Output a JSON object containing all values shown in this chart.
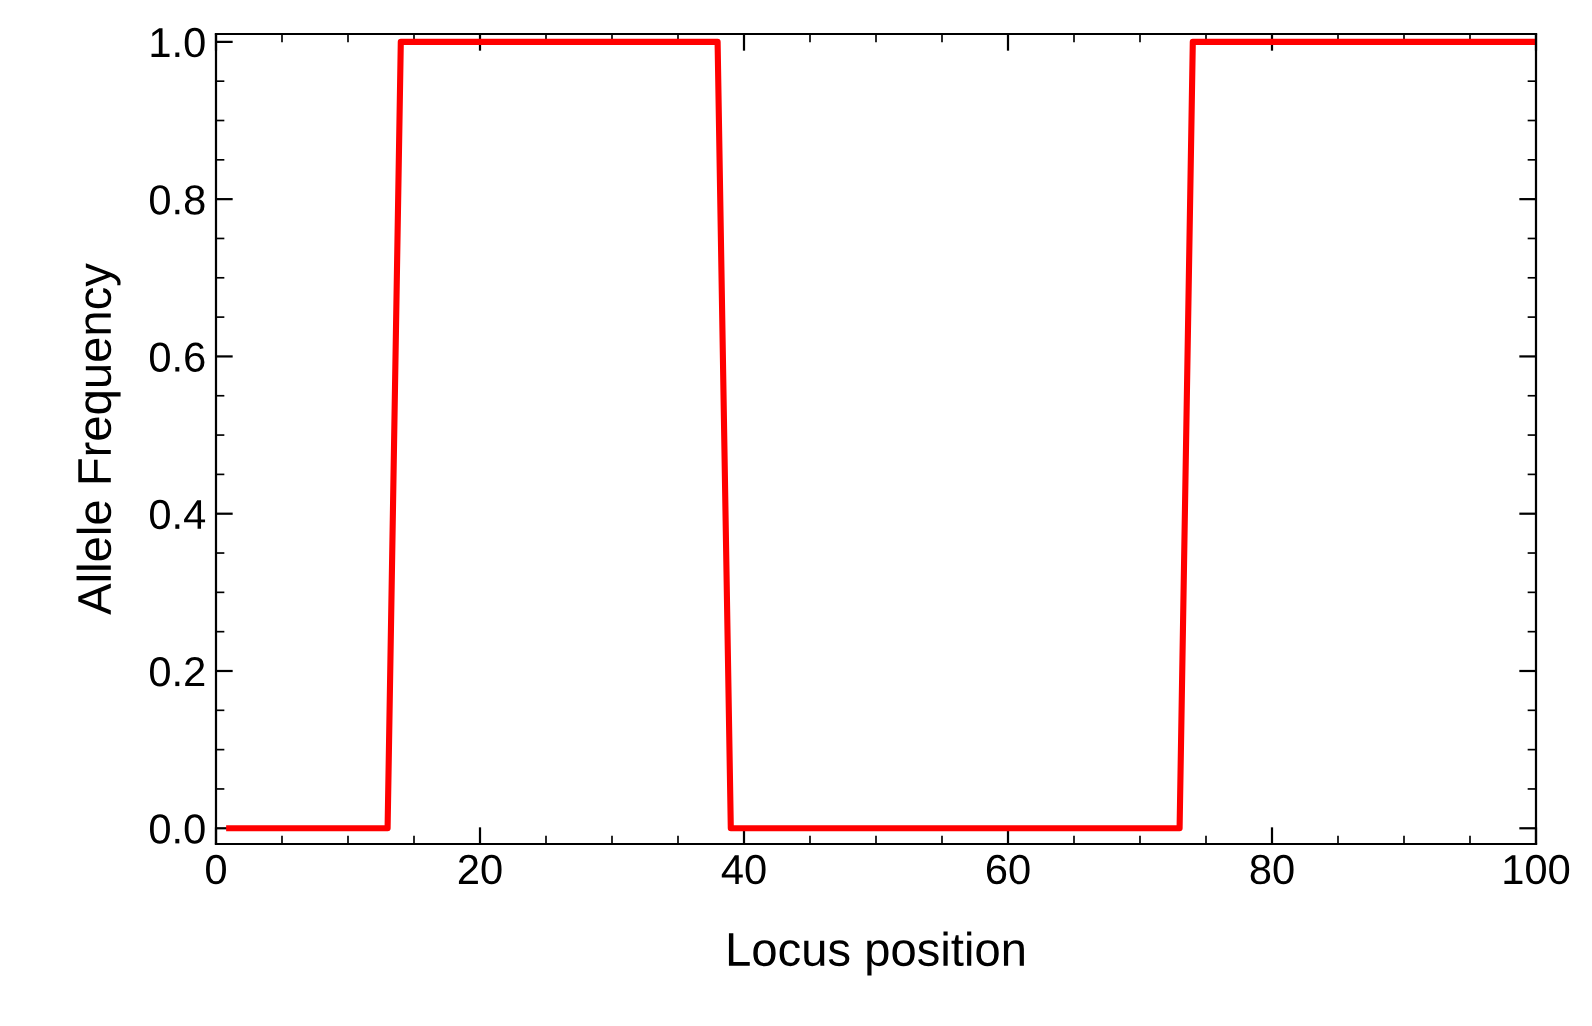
{
  "chart_data": {
    "type": "line",
    "xlabel": "Locus position",
    "ylabel": "Allele Frequency",
    "x": [
      1,
      13,
      14,
      38,
      39,
      73,
      74,
      100
    ],
    "series": [
      {
        "color": "#ff0000",
        "values": [
          0,
          0,
          1,
          1,
          0,
          0,
          1,
          1
        ]
      }
    ],
    "xlim": [
      0,
      100
    ],
    "ylim": [
      -0.02,
      1.01
    ],
    "xticks": [
      0,
      20,
      40,
      60,
      80,
      100
    ],
    "yticks": [
      {
        "value": 0,
        "label": "0.0"
      },
      {
        "value": 0.2,
        "label": "0.2"
      },
      {
        "value": 0.4,
        "label": "0.4"
      },
      {
        "value": 0.6,
        "label": "0.6"
      },
      {
        "value": 0.8,
        "label": "0.8"
      },
      {
        "value": 1.0,
        "label": "1.0"
      }
    ],
    "grid": false,
    "legend": false,
    "marker": "none",
    "line_style": "solid"
  }
}
